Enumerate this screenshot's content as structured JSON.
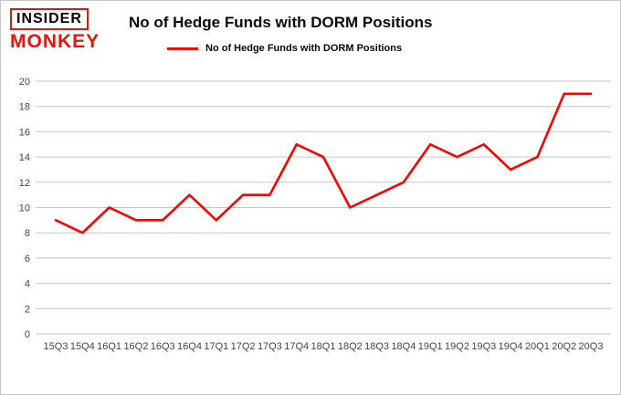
{
  "page": {
    "background": "#ffffff",
    "border_color": "#c9c9c9"
  },
  "logo": {
    "line1": "INSIDER",
    "line2": "MONKEY",
    "accent_color": "#e8140c"
  },
  "header": {
    "title": "No of Hedge Funds with DORM Positions"
  },
  "legend": {
    "label": "No of Hedge Funds with DORM Positions",
    "color": "#fe0000"
  },
  "chart_data": {
    "type": "line",
    "title": "No of Hedge Funds with DORM Positions",
    "xlabel": "",
    "ylabel": "",
    "categories": [
      "15Q3",
      "15Q4",
      "16Q1",
      "16Q2",
      "16Q3",
      "16Q4",
      "17Q1",
      "17Q2",
      "17Q3",
      "17Q4",
      "18Q1",
      "18Q2",
      "18Q3",
      "18Q4",
      "19Q1",
      "19Q2",
      "19Q3",
      "19Q4",
      "20Q1",
      "20Q2",
      "20Q3"
    ],
    "series": [
      {
        "name": "No of Hedge Funds with DORM Positions",
        "values": [
          9,
          8,
          10,
          9,
          9,
          11,
          9,
          11,
          11,
          15,
          14,
          10,
          11,
          12,
          15,
          14,
          15,
          13,
          14,
          19,
          19
        ]
      }
    ],
    "ylim": [
      0,
      20
    ],
    "ytick_step": 2,
    "grid": true,
    "gridline_color": "#c6c6c6",
    "line_color": "#fe0000",
    "legend_position": "top"
  }
}
